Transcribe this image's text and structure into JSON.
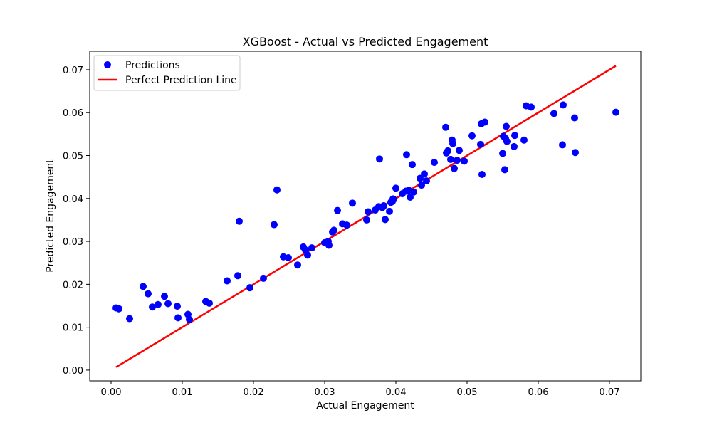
{
  "chart_data": {
    "type": "scatter",
    "title": "XGBoost - Actual vs Predicted Engagement",
    "xlabel": "Actual Engagement",
    "ylabel": "Predicted Engagement",
    "xlim": [
      -0.003,
      0.0744
    ],
    "ylim": [
      -0.0025,
      0.0743
    ],
    "xticks": [
      "0.00",
      "0.01",
      "0.02",
      "0.03",
      "0.04",
      "0.05",
      "0.06",
      "0.07"
    ],
    "yticks": [
      "0.00",
      "0.01",
      "0.02",
      "0.03",
      "0.04",
      "0.05",
      "0.06",
      "0.07"
    ],
    "grid": false,
    "legend_position": "upper-left",
    "series": [
      {
        "name": "Predictions",
        "kind": "scatter",
        "color": "#0000ff",
        "points": [
          [
            0.0007,
            0.0145
          ],
          [
            0.0011,
            0.0143
          ],
          [
            0.0026,
            0.012
          ],
          [
            0.0045,
            0.0195
          ],
          [
            0.0052,
            0.0178
          ],
          [
            0.0058,
            0.0147
          ],
          [
            0.0066,
            0.0153
          ],
          [
            0.0075,
            0.0172
          ],
          [
            0.008,
            0.0155
          ],
          [
            0.0093,
            0.0149
          ],
          [
            0.0094,
            0.0122
          ],
          [
            0.0108,
            0.013
          ],
          [
            0.011,
            0.0118
          ],
          [
            0.0133,
            0.016
          ],
          [
            0.0138,
            0.0156
          ],
          [
            0.0163,
            0.0208
          ],
          [
            0.0178,
            0.022
          ],
          [
            0.018,
            0.0347
          ],
          [
            0.0195,
            0.0192
          ],
          [
            0.0214,
            0.0214
          ],
          [
            0.0229,
            0.0339
          ],
          [
            0.0233,
            0.042
          ],
          [
            0.0242,
            0.0264
          ],
          [
            0.0249,
            0.0262
          ],
          [
            0.0262,
            0.0245
          ],
          [
            0.027,
            0.0287
          ],
          [
            0.0273,
            0.028
          ],
          [
            0.0276,
            0.0268
          ],
          [
            0.0282,
            0.0285
          ],
          [
            0.03,
            0.0297
          ],
          [
            0.0305,
            0.03
          ],
          [
            0.0306,
            0.0291
          ],
          [
            0.0311,
            0.0322
          ],
          [
            0.0313,
            0.0326
          ],
          [
            0.0318,
            0.0372
          ],
          [
            0.0325,
            0.0341
          ],
          [
            0.0331,
            0.0338
          ],
          [
            0.0339,
            0.0389
          ],
          [
            0.0359,
            0.035
          ],
          [
            0.0361,
            0.0369
          ],
          [
            0.0371,
            0.0373
          ],
          [
            0.0376,
            0.0381
          ],
          [
            0.0377,
            0.0492
          ],
          [
            0.0381,
            0.0379
          ],
          [
            0.0383,
            0.0383
          ],
          [
            0.0385,
            0.0351
          ],
          [
            0.0391,
            0.037
          ],
          [
            0.0393,
            0.0391
          ],
          [
            0.0395,
            0.0393
          ],
          [
            0.0396,
            0.0399
          ],
          [
            0.0397,
            0.0398
          ],
          [
            0.04,
            0.0424
          ],
          [
            0.0409,
            0.0411
          ],
          [
            0.0414,
            0.0417
          ],
          [
            0.0415,
            0.0502
          ],
          [
            0.0418,
            0.0419
          ],
          [
            0.042,
            0.0403
          ],
          [
            0.0423,
            0.0479
          ],
          [
            0.0425,
            0.0415
          ],
          [
            0.0434,
            0.0447
          ],
          [
            0.0436,
            0.0431
          ],
          [
            0.044,
            0.0457
          ],
          [
            0.0443,
            0.0441
          ],
          [
            0.0454,
            0.0484
          ],
          [
            0.047,
            0.0566
          ],
          [
            0.0471,
            0.0506
          ],
          [
            0.0473,
            0.0511
          ],
          [
            0.0477,
            0.0491
          ],
          [
            0.0479,
            0.0536
          ],
          [
            0.048,
            0.0528
          ],
          [
            0.0482,
            0.047
          ],
          [
            0.0486,
            0.0489
          ],
          [
            0.0489,
            0.0512
          ],
          [
            0.0496,
            0.0487
          ],
          [
            0.0507,
            0.0546
          ],
          [
            0.0519,
            0.0526
          ],
          [
            0.052,
            0.0574
          ],
          [
            0.0521,
            0.0456
          ],
          [
            0.0525,
            0.0578
          ],
          [
            0.055,
            0.0505
          ],
          [
            0.0551,
            0.0545
          ],
          [
            0.0553,
            0.0467
          ],
          [
            0.0554,
            0.054
          ],
          [
            0.0555,
            0.0568
          ],
          [
            0.0556,
            0.0533
          ],
          [
            0.0566,
            0.0521
          ],
          [
            0.0567,
            0.0547
          ],
          [
            0.058,
            0.0536
          ],
          [
            0.0583,
            0.0616
          ],
          [
            0.059,
            0.0613
          ],
          [
            0.0622,
            0.0598
          ],
          [
            0.0634,
            0.0525
          ],
          [
            0.0635,
            0.0618
          ],
          [
            0.0651,
            0.0588
          ],
          [
            0.0652,
            0.0507
          ],
          [
            0.0709,
            0.0601
          ]
        ]
      },
      {
        "name": "Perfect Prediction Line",
        "kind": "line",
        "color": "#ff0000",
        "points": [
          [
            0.0007,
            0.0007
          ],
          [
            0.0709,
            0.0709
          ]
        ]
      }
    ]
  }
}
